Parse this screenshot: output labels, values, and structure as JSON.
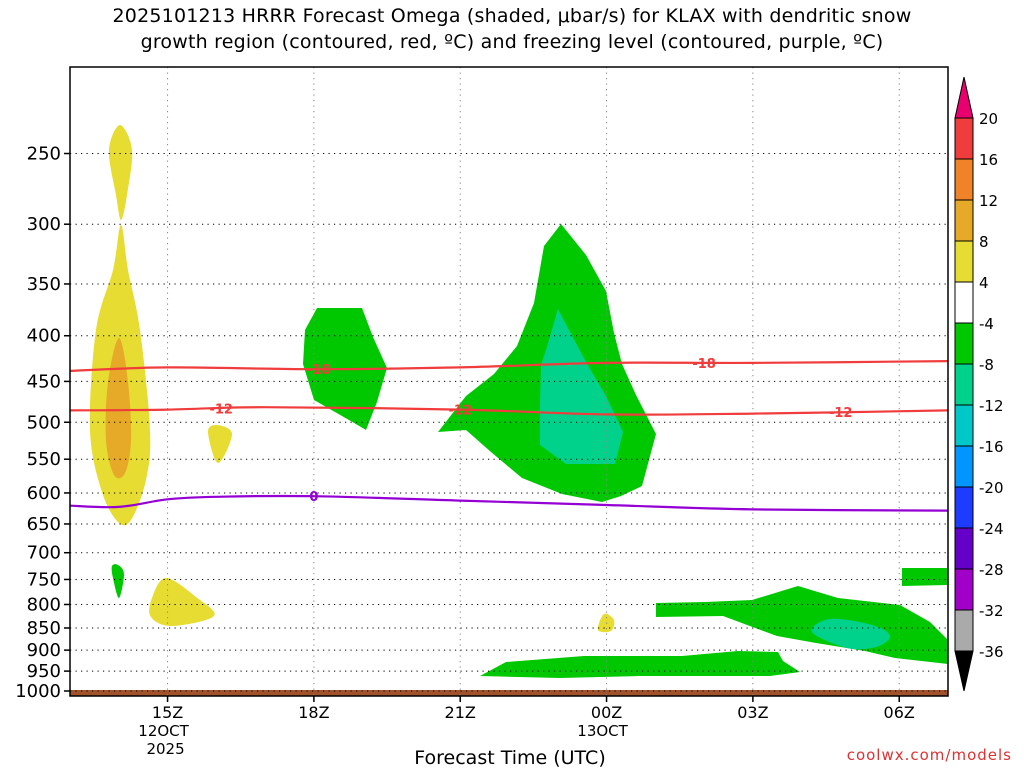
{
  "chart_data": {
    "type": "contour",
    "title_line1": "2025101213 HRRR Forecast Omega (shaded, μbar/s) for KLAX with dendritic snow",
    "title_line2": "growth region (contoured, red, ºC) and freezing level (contoured, purple, ºC)",
    "xlabel": "Forecast Time (UTC)",
    "watermark": "coolwx.com/models",
    "y_axis": {
      "scale": "log-pressure",
      "reversed": true,
      "ticks": [
        250,
        300,
        350,
        400,
        450,
        500,
        550,
        600,
        650,
        700,
        750,
        800,
        850,
        900,
        950,
        1000
      ],
      "range": [
        200,
        1013
      ]
    },
    "x_axis": {
      "range_hours": [
        13,
        31
      ],
      "ticks": [
        {
          "hour": 15,
          "label": "15Z",
          "sub1": "12OCT",
          "sub2": "2025"
        },
        {
          "hour": 18,
          "label": "18Z",
          "sub1": "",
          "sub2": ""
        },
        {
          "hour": 21,
          "label": "21Z",
          "sub1": "",
          "sub2": ""
        },
        {
          "hour": 24,
          "label": "00Z",
          "sub1": "13OCT",
          "sub2": ""
        },
        {
          "hour": 27,
          "label": "03Z",
          "sub1": "",
          "sub2": ""
        },
        {
          "hour": 30,
          "label": "06Z",
          "sub1": "",
          "sub2": ""
        }
      ]
    },
    "grid": true,
    "colorbar": {
      "position": "right",
      "levels": [
        {
          "label": "20",
          "color": "#e8006e"
        },
        {
          "label": "16",
          "color": "#f03c3c"
        },
        {
          "label": "12",
          "color": "#f08228"
        },
        {
          "label": "8",
          "color": "#e6aa28"
        },
        {
          "label": "4",
          "color": "#e6dc32"
        },
        {
          "label": "-4",
          "color": "#ffffff"
        },
        {
          "label": "-8",
          "color": "#00c800"
        },
        {
          "label": "-12",
          "color": "#00d28c"
        },
        {
          "label": "-16",
          "color": "#00c8c8"
        },
        {
          "label": "-20",
          "color": "#0096ff"
        },
        {
          "label": "-24",
          "color": "#1e3cff"
        },
        {
          "label": "-28",
          "color": "#6400c8"
        },
        {
          "label": "-32",
          "color": "#a000c8"
        },
        {
          "label": "-36",
          "color": "#aaaaaa"
        }
      ],
      "under_color": "#000000",
      "over_color": "#e8006e"
    },
    "contours": [
      {
        "name": "-18",
        "color": "#f03c3c",
        "points": [
          [
            13.0,
            438
          ],
          [
            15.0,
            434
          ],
          [
            18.0,
            436
          ],
          [
            21.0,
            434
          ],
          [
            24.0,
            429
          ],
          [
            27.0,
            429
          ],
          [
            31.0,
            427
          ]
        ],
        "labels": [
          {
            "hour": 18.1,
            "text": "-18"
          },
          {
            "hour": 26.0,
            "text": "-18"
          }
        ]
      },
      {
        "name": "-12",
        "color": "#f03c3c",
        "points": [
          [
            13.0,
            485
          ],
          [
            15.0,
            484
          ],
          [
            17.0,
            481
          ],
          [
            21.0,
            484
          ],
          [
            24.0,
            490
          ],
          [
            27.0,
            489
          ],
          [
            31.0,
            485
          ]
        ],
        "labels": [
          {
            "hour": 16.1,
            "text": "-12"
          },
          {
            "hour": 21.0,
            "text": "-12"
          },
          {
            "hour": 28.8,
            "text": "-12"
          }
        ]
      },
      {
        "name": "0",
        "color": "#9400d3",
        "points": [
          [
            13.0,
            620
          ],
          [
            14.0,
            622
          ],
          [
            15.0,
            610
          ],
          [
            16.0,
            606
          ],
          [
            18.0,
            605
          ],
          [
            21.0,
            612
          ],
          [
            24.0,
            619
          ],
          [
            27.0,
            626
          ],
          [
            31.0,
            628
          ]
        ],
        "labels": [
          {
            "hour": 18.0,
            "text": "0"
          }
        ]
      }
    ],
    "ground_level_hpa": 1000,
    "ground_color": "#a0522d"
  }
}
